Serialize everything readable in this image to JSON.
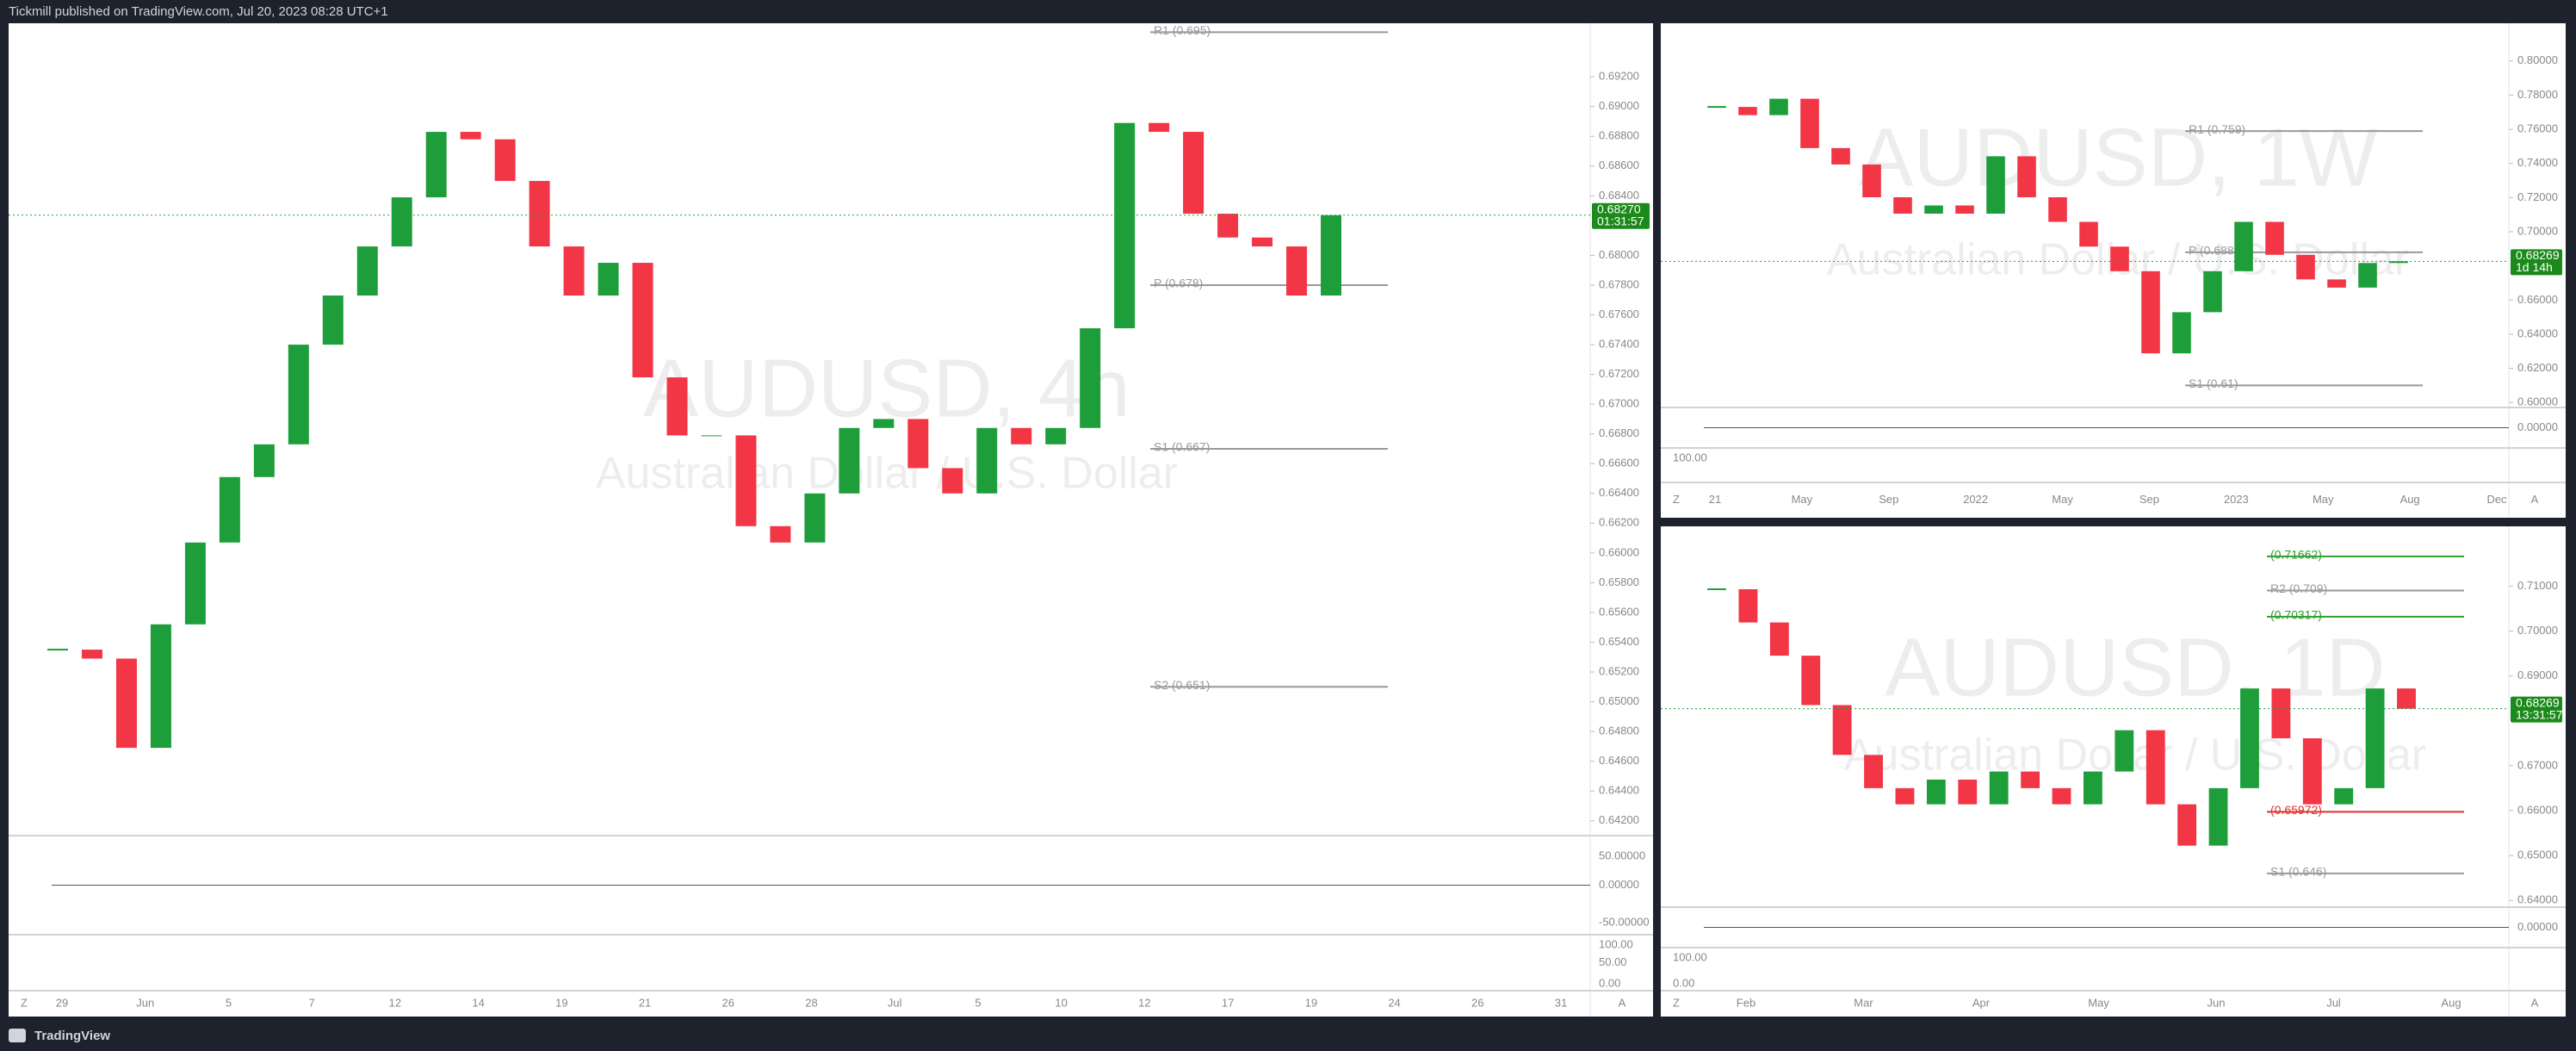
{
  "header": {
    "text": "Tickmill published on TradingView.com, Jul 20, 2023 08:28 UTC+1"
  },
  "footer": {
    "brand": "TradingView"
  },
  "up_color": "#1e9e3a",
  "down_color": "#f23645",
  "panels": [
    {
      "watermark": "AUDUSD, 4h",
      "subtitle": "Australian Dollar / U.S. Dollar",
      "ylim": [
        0.641,
        0.6956
      ],
      "yticks": [
        {
          "value": 0.642,
          "label": "0.64200"
        },
        {
          "value": 0.644,
          "label": "0.64400"
        },
        {
          "value": 0.646,
          "label": "0.64600"
        },
        {
          "value": 0.648,
          "label": "0.64800"
        },
        {
          "value": 0.65,
          "label": "0.65000"
        },
        {
          "value": 0.652,
          "label": "0.65200"
        },
        {
          "value": 0.654,
          "label": "0.65400"
        },
        {
          "value": 0.656,
          "label": "0.65600"
        },
        {
          "value": 0.658,
          "label": "0.65800"
        },
        {
          "value": 0.66,
          "label": "0.66000"
        },
        {
          "value": 0.662,
          "label": "0.66200"
        },
        {
          "value": 0.664,
          "label": "0.66400"
        },
        {
          "value": 0.666,
          "label": "0.66600"
        },
        {
          "value": 0.668,
          "label": "0.66800"
        },
        {
          "value": 0.67,
          "label": "0.67000"
        },
        {
          "value": 0.672,
          "label": "0.67200"
        },
        {
          "value": 0.674,
          "label": "0.67400"
        },
        {
          "value": 0.676,
          "label": "0.67600"
        },
        {
          "value": 0.678,
          "label": "0.67800"
        },
        {
          "value": 0.68,
          "label": "0.68000"
        },
        {
          "value": 0.684,
          "label": "0.68400"
        },
        {
          "value": 0.686,
          "label": "0.68600"
        },
        {
          "value": 0.688,
          "label": "0.68800"
        },
        {
          "value": 0.69,
          "label": "0.69000"
        },
        {
          "value": 0.692,
          "label": "0.69200"
        }
      ],
      "closes": [
        0.6535,
        0.6529,
        0.6469,
        0.6552,
        0.6607,
        0.6651,
        0.6673,
        0.674,
        0.6773,
        0.6806,
        0.6839,
        0.6883,
        0.6878,
        0.685,
        0.6806,
        0.6773,
        0.6795,
        0.6718,
        0.6679,
        0.6679,
        0.6618,
        0.6607,
        0.664,
        0.6684,
        0.669,
        0.6657,
        0.664,
        0.6684,
        0.6673,
        0.6684,
        0.6751,
        0.6889,
        0.6883,
        0.6828,
        0.6812,
        0.6806,
        0.6773,
        0.6827
      ],
      "price_label": "0.68270",
      "countdown": "01:31:57",
      "levels": [
        {
          "label": "R1 (0.695)",
          "value": 0.695,
          "color": "#999999"
        },
        {
          "label": "P (0.678)",
          "value": 0.678,
          "color": "#999999"
        },
        {
          "label": "S1 (0.667)",
          "value": 0.667,
          "color": "#999999"
        },
        {
          "label": "S2 (0.651)",
          "value": 0.651,
          "color": "#999999"
        }
      ],
      "indicator_labels": [
        "50.00000",
        "0.00000",
        "-50.00000",
        "100.00",
        "50.00",
        "0.00"
      ],
      "x_labels": [
        "29",
        "Jun",
        "5",
        "7",
        "12",
        "14",
        "19",
        "21",
        "26",
        "28",
        "Jul",
        "5",
        "10",
        "12",
        "17",
        "19",
        "24",
        "26",
        "31"
      ],
      "z_button": "Z",
      "a_button": "A"
    },
    {
      "watermark": "AUDUSD, 1W",
      "subtitle": "Australian Dollar / U.S. Dollar",
      "ylim": [
        0.5971,
        0.8221
      ],
      "yticks": [
        {
          "value": 0.6,
          "label": "0.60000"
        },
        {
          "value": 0.62,
          "label": "0.62000"
        },
        {
          "value": 0.64,
          "label": "0.64000"
        },
        {
          "value": 0.66,
          "label": "0.66000"
        },
        {
          "value": 0.7,
          "label": "0.70000"
        },
        {
          "value": 0.72,
          "label": "0.72000"
        },
        {
          "value": 0.74,
          "label": "0.74000"
        },
        {
          "value": 0.76,
          "label": "0.76000"
        },
        {
          "value": 0.78,
          "label": "0.78000"
        },
        {
          "value": 0.8,
          "label": "0.80000"
        }
      ],
      "closes": [
        0.7731,
        0.7683,
        0.7779,
        0.749,
        0.7394,
        0.7202,
        0.7106,
        0.7154,
        0.7106,
        0.7442,
        0.7202,
        0.7058,
        0.6913,
        0.6769,
        0.6288,
        0.6529,
        0.6769,
        0.7058,
        0.6865,
        0.6721,
        0.6673,
        0.6817,
        0.6827
      ],
      "price_label": "0.68269",
      "countdown": "1d 14h",
      "levels": [
        {
          "label": "R1 (0.759)",
          "value": 0.759,
          "color": "#999999"
        },
        {
          "label": "P (0.688)",
          "value": 0.688,
          "color": "#999999"
        },
        {
          "label": "S1 (0.61)",
          "value": 0.61,
          "color": "#999999"
        }
      ],
      "indicator_labels": [
        "0.00000",
        "100.00"
      ],
      "x_labels": [
        "21",
        "May",
        "Sep",
        "2022",
        "May",
        "Sep",
        "2023",
        "May",
        "Aug",
        "Dec"
      ],
      "z_button": "Z",
      "a_button": "A"
    },
    {
      "watermark": "AUDUSD, 1D",
      "subtitle": "Australian Dollar / U.S. Dollar",
      "ylim": [
        0.6385,
        0.7233
      ],
      "yticks": [
        {
          "value": 0.64,
          "label": "0.64000"
        },
        {
          "value": 0.65,
          "label": "0.65000"
        },
        {
          "value": 0.66,
          "label": "0.66000"
        },
        {
          "value": 0.67,
          "label": "0.67000"
        },
        {
          "value": 0.69,
          "label": "0.69000"
        },
        {
          "value": 0.7,
          "label": "0.70000"
        },
        {
          "value": 0.71,
          "label": "0.71000"
        }
      ],
      "closes": [
        0.7093,
        0.7019,
        0.6945,
        0.6835,
        0.6724,
        0.665,
        0.6614,
        0.6669,
        0.6614,
        0.6687,
        0.665,
        0.6614,
        0.6687,
        0.6779,
        0.6614,
        0.6522,
        0.665,
        0.6872,
        0.6761,
        0.6614,
        0.665,
        0.6872,
        0.6827
      ],
      "price_label": "0.68269",
      "countdown": "13:31:57",
      "levels": [
        {
          "label": "(0.71662)",
          "value": 0.71662,
          "color": "#2e9e2e"
        },
        {
          "label": "R2 (0.709)",
          "value": 0.709,
          "color": "#999999"
        },
        {
          "label": "(0.70317)",
          "value": 0.70317,
          "color": "#2e9e2e"
        },
        {
          "label": "(0.65972)",
          "value": 0.65972,
          "color": "#e03030"
        },
        {
          "label": "S1 (0.646)",
          "value": 0.646,
          "color": "#999999"
        }
      ],
      "indicator_labels": [
        "0.00000",
        "100.00",
        "0.00"
      ],
      "x_labels": [
        "Feb",
        "Mar",
        "Apr",
        "May",
        "Jun",
        "Jul",
        "Aug"
      ],
      "z_button": "Z",
      "a_button": "A"
    }
  ]
}
